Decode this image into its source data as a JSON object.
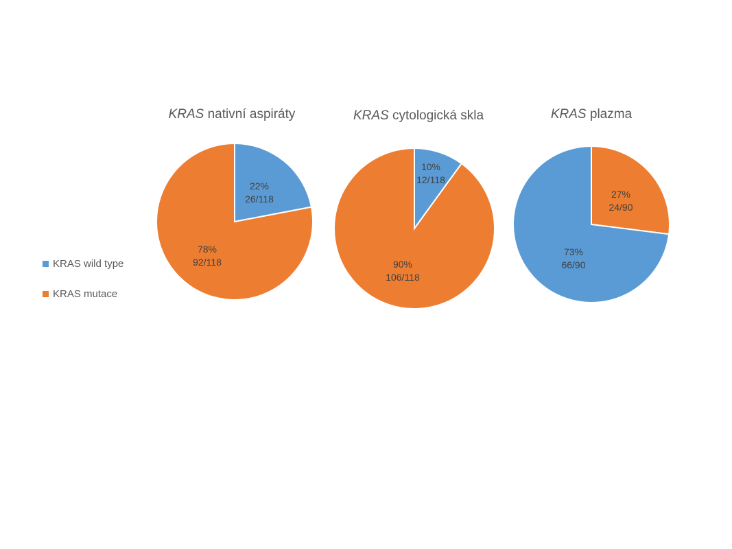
{
  "colors": {
    "wild_type": "#5b9bd5",
    "mutace": "#ed7d31",
    "text": "#595959",
    "label": "#404040"
  },
  "legend": [
    {
      "label": "KRAS wild type",
      "color": "#5b9bd5"
    },
    {
      "label": "KRAS mutace",
      "color": "#ed7d31"
    }
  ],
  "chart_data": [
    {
      "type": "pie",
      "title_italic": "KRAS",
      "title_rest": " nativní aspiráty",
      "slices": [
        {
          "name": "KRAS wild type",
          "value": 22,
          "percent_label": "22%",
          "count_label": "26/118",
          "color": "#5b9bd5"
        },
        {
          "name": "KRAS mutace",
          "value": 78,
          "percent_label": "78%",
          "count_label": "92/118",
          "color": "#ed7d31"
        }
      ]
    },
    {
      "type": "pie",
      "title_italic": "KRAS",
      "title_rest": " cytologická skla",
      "slices": [
        {
          "name": "KRAS wild type",
          "value": 10,
          "percent_label": "10%",
          "count_label": "12/118",
          "color": "#5b9bd5"
        },
        {
          "name": "KRAS mutace",
          "value": 90,
          "percent_label": "90%",
          "count_label": "106/118",
          "color": "#ed7d31"
        }
      ]
    },
    {
      "type": "pie",
      "title_italic": "KRAS",
      "title_rest": " plazma",
      "slices": [
        {
          "name": "KRAS mutace",
          "value": 27,
          "percent_label": "27%",
          "count_label": "24/90",
          "color": "#ed7d31"
        },
        {
          "name": "KRAS wild type",
          "value": 73,
          "percent_label": "73%",
          "count_label": "66/90",
          "color": "#5b9bd5"
        }
      ]
    }
  ]
}
